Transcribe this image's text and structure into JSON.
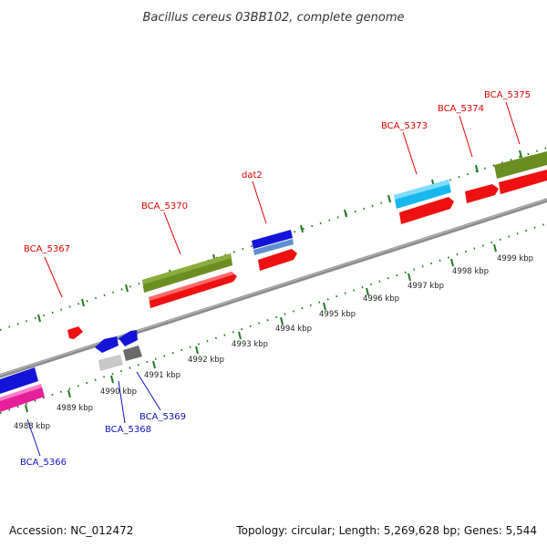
{
  "title": "Bacillus cereus 03BB102, complete genome",
  "footer": {
    "accession": "Accession: NC_012472",
    "summary": "Topology: circular; Length: 5,269,628 bp; Genes: 5,544"
  },
  "axis": {
    "tick_labels": [
      "4988 kbp",
      "4989 kbp",
      "4990 kbp",
      "4991 kbp",
      "4992 kbp",
      "4993 kbp",
      "4994 kbp",
      "4995 kbp",
      "4996 kbp",
      "4997 kbp",
      "4998 kbp",
      "4999 kbp"
    ]
  },
  "gene_labels": {
    "top": [
      "BCA_5367",
      "BCA_5370",
      "dat2",
      "BCA_5373",
      "BCA_5374",
      "BCA_5375"
    ],
    "bottom": [
      "BCA_5366",
      "BCA_5368",
      "BCA_5369"
    ]
  },
  "colors": {
    "backbone": "#8c8c8c",
    "tick": "#1f7a1f",
    "red": "#ee1111",
    "olive": "#6b8e23",
    "blue": "#1414d8",
    "cyan": "#18b8ee",
    "pink": "#e81f9a",
    "light_gray": "#c8c8c8",
    "dark_gray": "#6a6a6a"
  }
}
